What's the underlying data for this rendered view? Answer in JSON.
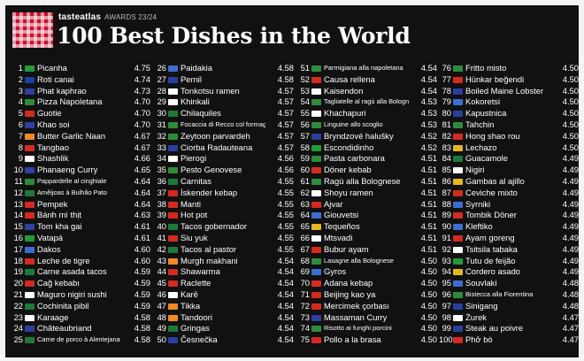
{
  "header": {
    "brand": "tasteatlas",
    "awards": "AWARDS 23/24",
    "title": "100 Best Dishes in the World"
  },
  "columns": [
    [
      {
        "rank": "1",
        "dish": "Picanha",
        "rating": "4.75",
        "flag": "#1e9b3a"
      },
      {
        "rank": "2",
        "dish": "Roti canai",
        "rating": "4.74",
        "flag": "#1b3fa0"
      },
      {
        "rank": "3",
        "dish": "Phat kaphrao",
        "rating": "4.73",
        "flag": "#2f3fa0"
      },
      {
        "rank": "4",
        "dish": "Pizza Napoletana",
        "rating": "4.70",
        "flag": "#2e8b3c"
      },
      {
        "rank": "5",
        "dish": "Guotie",
        "rating": "4.70",
        "flag": "#d42b1e"
      },
      {
        "rank": "6",
        "dish": "Khao soi",
        "rating": "4.70",
        "flag": "#2f3fa0"
      },
      {
        "rank": "7",
        "dish": "Butter Garlic Naan",
        "rating": "4.67",
        "flag": "#f08a24"
      },
      {
        "rank": "8",
        "dish": "Tangbao",
        "rating": "4.67",
        "flag": "#d42b1e"
      },
      {
        "rank": "9",
        "dish": "Shashlik",
        "rating": "4.66",
        "flag": "#ffffff"
      },
      {
        "rank": "10",
        "dish": "Phanaeng Curry",
        "rating": "4.65",
        "flag": "#2f3fa0"
      },
      {
        "rank": "11",
        "dish": "Pappardelle al cinghiale",
        "rating": "4.64",
        "flag": "#2e8b3c"
      },
      {
        "rank": "12",
        "dish": "Amêijoas à Bulhão Pato",
        "rating": "4.64",
        "flag": "#1e7a3a"
      },
      {
        "rank": "13",
        "dish": "Pempek",
        "rating": "4.64",
        "flag": "#d42b1e"
      },
      {
        "rank": "14",
        "dish": "Bánh mì thịt",
        "rating": "4.63",
        "flag": "#d42b1e"
      },
      {
        "rank": "15",
        "dish": "Tom kha gai",
        "rating": "4.61",
        "flag": "#2f3fa0"
      },
      {
        "rank": "16",
        "dish": "Vatapá",
        "rating": "4.61",
        "flag": "#1e9b3a"
      },
      {
        "rank": "17",
        "dish": "Dakos",
        "rating": "4.60",
        "flag": "#3a6fd0"
      },
      {
        "rank": "18",
        "dish": "Leche de tigre",
        "rating": "4.60",
        "flag": "#d42b1e"
      },
      {
        "rank": "19",
        "dish": "Carne asada tacos",
        "rating": "4.59",
        "flag": "#1e7a3a"
      },
      {
        "rank": "20",
        "dish": "Cağ kebabı",
        "rating": "4.59",
        "flag": "#d42b1e"
      },
      {
        "rank": "21",
        "dish": "Maguro nigiri sushi",
        "rating": "4.59",
        "flag": "#ffffff"
      },
      {
        "rank": "22",
        "dish": "Cochinita pibil",
        "rating": "4.59",
        "flag": "#1e7a3a"
      },
      {
        "rank": "23",
        "dish": "Karaage",
        "rating": "4.58",
        "flag": "#ffffff"
      },
      {
        "rank": "24",
        "dish": "Châteaubriand",
        "rating": "4.58",
        "flag": "#2a3f9e"
      },
      {
        "rank": "25",
        "dish": "Carne de porco à Alentejana",
        "rating": "4.58",
        "flag": "#1e7a3a"
      }
    ],
    [
      {
        "rank": "26",
        "dish": "Paidakia",
        "rating": "4.58",
        "flag": "#3a6fd0"
      },
      {
        "rank": "27",
        "dish": "Pernil",
        "rating": "4.58",
        "flag": "#2a3f9e"
      },
      {
        "rank": "28",
        "dish": "Tonkotsu ramen",
        "rating": "4.57",
        "flag": "#ffffff"
      },
      {
        "rank": "29",
        "dish": "Khinkali",
        "rating": "4.57",
        "flag": "#ffffff"
      },
      {
        "rank": "30",
        "dish": "Chilaquiles",
        "rating": "4.57",
        "flag": "#1e7a3a"
      },
      {
        "rank": "31",
        "dish": "Focaccia di Recco col formaggio",
        "rating": "4.57",
        "flag": "#2e8b3c"
      },
      {
        "rank": "32",
        "dish": "Zeytoon parvardeh",
        "rating": "4.57",
        "flag": "#2e8b3c"
      },
      {
        "rank": "33",
        "dish": "Ciorba Radauteana",
        "rating": "4.57",
        "flag": "#2a3f9e"
      },
      {
        "rank": "34",
        "dish": "Pierogi",
        "rating": "4.56",
        "flag": "#ffffff"
      },
      {
        "rank": "35",
        "dish": "Pesto Genovese",
        "rating": "4.56",
        "flag": "#2e8b3c"
      },
      {
        "rank": "36",
        "dish": "Carnitas",
        "rating": "4.55",
        "flag": "#1e7a3a"
      },
      {
        "rank": "37",
        "dish": "İskender kebap",
        "rating": "4.55",
        "flag": "#d42b1e"
      },
      {
        "rank": "38",
        "dish": "Manti",
        "rating": "4.55",
        "flag": "#d42b1e"
      },
      {
        "rank": "39",
        "dish": "Hot pot",
        "rating": "4.55",
        "flag": "#d42b1e"
      },
      {
        "rank": "40",
        "dish": "Tacos gobernador",
        "rating": "4.55",
        "flag": "#1e7a3a"
      },
      {
        "rank": "41",
        "dish": "Siu yuk",
        "rating": "4.55",
        "flag": "#d42b1e"
      },
      {
        "rank": "42",
        "dish": "Tacos al pastor",
        "rating": "4.55",
        "flag": "#1e7a3a"
      },
      {
        "rank": "43",
        "dish": "Murgh makhani",
        "rating": "4.54",
        "flag": "#f08a24"
      },
      {
        "rank": "44",
        "dish": "Shawarma",
        "rating": "4.54",
        "flag": "#d42b1e"
      },
      {
        "rank": "45",
        "dish": "Raclette",
        "rating": "4.54",
        "flag": "#d42b1e"
      },
      {
        "rank": "46",
        "dish": "Karē",
        "rating": "4.54",
        "flag": "#ffffff"
      },
      {
        "rank": "47",
        "dish": "Tikka",
        "rating": "4.54",
        "flag": "#f08a24"
      },
      {
        "rank": "48",
        "dish": "Tandoori",
        "rating": "4.54",
        "flag": "#f08a24"
      },
      {
        "rank": "49",
        "dish": "Gringas",
        "rating": "4.54",
        "flag": "#1e7a3a"
      },
      {
        "rank": "50",
        "dish": "Česnečka",
        "rating": "4.54",
        "flag": "#2a3f9e"
      }
    ],
    [
      {
        "rank": "51",
        "dish": "Parmigiana alla napoletana",
        "rating": "4.54",
        "flag": "#2e8b3c"
      },
      {
        "rank": "52",
        "dish": "Causa rellena",
        "rating": "4.54",
        "flag": "#d42b1e"
      },
      {
        "rank": "53",
        "dish": "Kaisendon",
        "rating": "4.54",
        "flag": "#ffffff"
      },
      {
        "rank": "54",
        "dish": "Tagliatelle al ragù alla Bolognese",
        "rating": "4.53",
        "flag": "#2e8b3c"
      },
      {
        "rank": "55",
        "dish": "Khachapuri",
        "rating": "4.53",
        "flag": "#ffffff"
      },
      {
        "rank": "56",
        "dish": "Linguine allo scoglio",
        "rating": "4.53",
        "flag": "#2e8b3c"
      },
      {
        "rank": "57",
        "dish": "Bryndzové halušky",
        "rating": "4.52",
        "flag": "#2a3f9e"
      },
      {
        "rank": "58",
        "dish": "Escondidinho",
        "rating": "4.52",
        "flag": "#1e9b3a"
      },
      {
        "rank": "59",
        "dish": "Pasta carbonara",
        "rating": "4.51",
        "flag": "#2e8b3c"
      },
      {
        "rank": "60",
        "dish": "Döner kebab",
        "rating": "4.51",
        "flag": "#d42b1e"
      },
      {
        "rank": "61",
        "dish": "Ragù alla Bolognese",
        "rating": "4.51",
        "flag": "#2e8b3c"
      },
      {
        "rank": "62",
        "dish": "Shoyu ramen",
        "rating": "4.51",
        "flag": "#ffffff"
      },
      {
        "rank": "63",
        "dish": "Ajvar",
        "rating": "4.51",
        "flag": "#d42b1e"
      },
      {
        "rank": "64",
        "dish": "Giouvetsi",
        "rating": "4.51",
        "flag": "#3a6fd0"
      },
      {
        "rank": "65",
        "dish": "Tequeños",
        "rating": "4.51",
        "flag": "#e5b71e"
      },
      {
        "rank": "66",
        "dish": "Mtsvadi",
        "rating": "4.51",
        "flag": "#ffffff"
      },
      {
        "rank": "67",
        "dish": "Bubur ayam",
        "rating": "4.51",
        "flag": "#d42b1e"
      },
      {
        "rank": "68",
        "dish": "Lasagne alla Bolognese",
        "rating": "4.50",
        "flag": "#2e8b3c"
      },
      {
        "rank": "69",
        "dish": "Gyros",
        "rating": "4.50",
        "flag": "#3a6fd0"
      },
      {
        "rank": "70",
        "dish": "Adana kebap",
        "rating": "4.50",
        "flag": "#d42b1e"
      },
      {
        "rank": "71",
        "dish": "Beijing kao ya",
        "rating": "4.50",
        "flag": "#d42b1e"
      },
      {
        "rank": "72",
        "dish": "Mercimek çorbası",
        "rating": "4.50",
        "flag": "#d42b1e"
      },
      {
        "rank": "73",
        "dish": "Massaman Curry",
        "rating": "4.50",
        "flag": "#2f3fa0"
      },
      {
        "rank": "74",
        "dish": "Risotto ai funghi porcini",
        "rating": "4.50",
        "flag": "#2e8b3c"
      },
      {
        "rank": "75",
        "dish": "Pollo a la brasa",
        "rating": "4.50",
        "flag": "#d42b1e"
      }
    ],
    [
      {
        "rank": "76",
        "dish": "Fritto misto",
        "rating": "4.50",
        "flag": "#2e8b3c"
      },
      {
        "rank": "77",
        "dish": "Hünkar beğendi",
        "rating": "4.50",
        "flag": "#d42b1e"
      },
      {
        "rank": "78",
        "dish": "Boiled Maine Lobster",
        "rating": "4.50",
        "flag": "#2a3f9e"
      },
      {
        "rank": "79",
        "dish": "Kokoretsi",
        "rating": "4.50",
        "flag": "#3a6fd0"
      },
      {
        "rank": "80",
        "dish": "Kapustnica",
        "rating": "4.50",
        "flag": "#2a3f9e"
      },
      {
        "rank": "81",
        "dish": "Tahchin",
        "rating": "4.50",
        "flag": "#2e8b3c"
      },
      {
        "rank": "82",
        "dish": "Hong shao rou",
        "rating": "4.50",
        "flag": "#d42b1e"
      },
      {
        "rank": "83",
        "dish": "Lechazo",
        "rating": "4.50",
        "flag": "#e5b71e"
      },
      {
        "rank": "84",
        "dish": "Guacamole",
        "rating": "4.49",
        "flag": "#1e7a3a"
      },
      {
        "rank": "85",
        "dish": "Nigiri",
        "rating": "4.49",
        "flag": "#ffffff"
      },
      {
        "rank": "86",
        "dish": "Gambas al ajillo",
        "rating": "4.49",
        "flag": "#e5b71e"
      },
      {
        "rank": "87",
        "dish": "Ceviche mixto",
        "rating": "4.49",
        "flag": "#d42b1e"
      },
      {
        "rank": "88",
        "dish": "Syrniki",
        "rating": "4.49",
        "flag": "#3a6fd0"
      },
      {
        "rank": "89",
        "dish": "Tombik Döner",
        "rating": "4.49",
        "flag": "#d42b1e"
      },
      {
        "rank": "90",
        "dish": "Kleftiko",
        "rating": "4.49",
        "flag": "#3a6fd0"
      },
      {
        "rank": "91",
        "dish": "Ayam goreng",
        "rating": "4.49",
        "flag": "#d42b1e"
      },
      {
        "rank": "92",
        "dish": "Tsitsila tabaka",
        "rating": "4.49",
        "flag": "#ffffff"
      },
      {
        "rank": "93",
        "dish": "Tutu de feijão",
        "rating": "4.49",
        "flag": "#1e9b3a"
      },
      {
        "rank": "94",
        "dish": "Cordero asado",
        "rating": "4.49",
        "flag": "#e5b71e"
      },
      {
        "rank": "95",
        "dish": "Souvlaki",
        "rating": "4.48",
        "flag": "#3a6fd0"
      },
      {
        "rank": "96",
        "dish": "Bistecca alla Fiorentina",
        "rating": "4.48",
        "flag": "#2e8b3c"
      },
      {
        "rank": "97",
        "dish": "Sinigang",
        "rating": "4.48",
        "flag": "#2a3f9e"
      },
      {
        "rank": "98",
        "dish": "Żurek",
        "rating": "4.47",
        "flag": "#ffffff"
      },
      {
        "rank": "99",
        "dish": "Steak au poivre",
        "rating": "4.47",
        "flag": "#2a3f9e"
      },
      {
        "rank": "100",
        "dish": "Phở bò",
        "rating": "4.47",
        "flag": "#d42b1e"
      }
    ]
  ]
}
